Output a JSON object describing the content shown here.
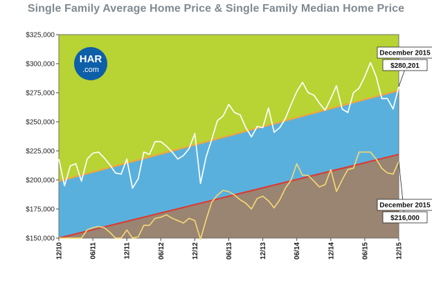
{
  "chart_data": {
    "type": "line",
    "title": "Single Family Average Home Price & Single Family Median Home Price",
    "xlabel": "",
    "ylabel": "",
    "ylim": [
      150000,
      325000
    ],
    "y_ticks": [
      "$150,000",
      "$175,000",
      "$200,000",
      "$225,000",
      "$250,000",
      "$275,000",
      "$300,000",
      "$325,000"
    ],
    "y_tick_values": [
      150000,
      175000,
      200000,
      225000,
      250000,
      275000,
      300000,
      325000
    ],
    "x_tick_labels": [
      "12/10",
      "06/11",
      "12/11",
      "06/12",
      "12/12",
      "06/13",
      "12/13",
      "06/14",
      "12/14",
      "06/15",
      "12/15"
    ],
    "x_tick_index": [
      0,
      6,
      12,
      18,
      24,
      30,
      36,
      42,
      48,
      54,
      60
    ],
    "grid": false,
    "logo": {
      "line1": "HAR",
      "line2": ".com",
      "color": "#0d5fa8"
    },
    "colors": {
      "top_zone": "#b8d334",
      "middle_zone": "#5ab0dc",
      "bottom_zone": "#9a8472",
      "upper_trend": "#f2a53a",
      "lower_trend": "#e0362c",
      "average_line": "#ffffff",
      "median_line": "#f2d774"
    },
    "bands": {
      "upper_trend": {
        "start": 199000,
        "end": 277000
      },
      "lower_trend": {
        "start": 150000,
        "end": 222000
      }
    },
    "series": [
      {
        "values": [
          218000,
          195000,
          212000,
          214000,
          199000,
          218000,
          223000,
          224000,
          219000,
          213000,
          206000,
          205000,
          218000,
          193000,
          201000,
          224000,
          222000,
          233000,
          233000,
          229000,
          224000,
          218000,
          221000,
          227000,
          240000,
          197000,
          220000,
          235000,
          251000,
          255000,
          265000,
          258000,
          256000,
          245000,
          237000,
          246000,
          245000,
          262000,
          241000,
          245000,
          253000,
          265000,
          276000,
          284000,
          275000,
          273000,
          266000,
          260000,
          270000,
          281000,
          261000,
          258000,
          275000,
          279000,
          289000,
          301000,
          289000,
          270000,
          270000,
          261000,
          280201
        ]
      },
      {
        "values": [
          150000,
          150000,
          150000,
          150000,
          150000,
          157000,
          159000,
          160000,
          159000,
          155000,
          150000,
          150000,
          157000,
          150000,
          151000,
          161000,
          161000,
          167000,
          168000,
          170000,
          167000,
          165000,
          163000,
          167000,
          165000,
          149000,
          166000,
          181000,
          187000,
          191000,
          190000,
          187000,
          183000,
          180000,
          175000,
          184000,
          186000,
          182000,
          176000,
          183000,
          193000,
          200000,
          214000,
          204000,
          204000,
          199000,
          194000,
          196000,
          209000,
          190000,
          200000,
          209000,
          210000,
          224000,
          224000,
          224000,
          218000,
          210000,
          206000,
          205000,
          216000
        ]
      }
    ],
    "annotations": [
      {
        "label": "December 2015",
        "value_text": "$280,201",
        "series": 0
      },
      {
        "label": "December 2015",
        "value_text": "$216,000",
        "series": 1
      }
    ]
  }
}
